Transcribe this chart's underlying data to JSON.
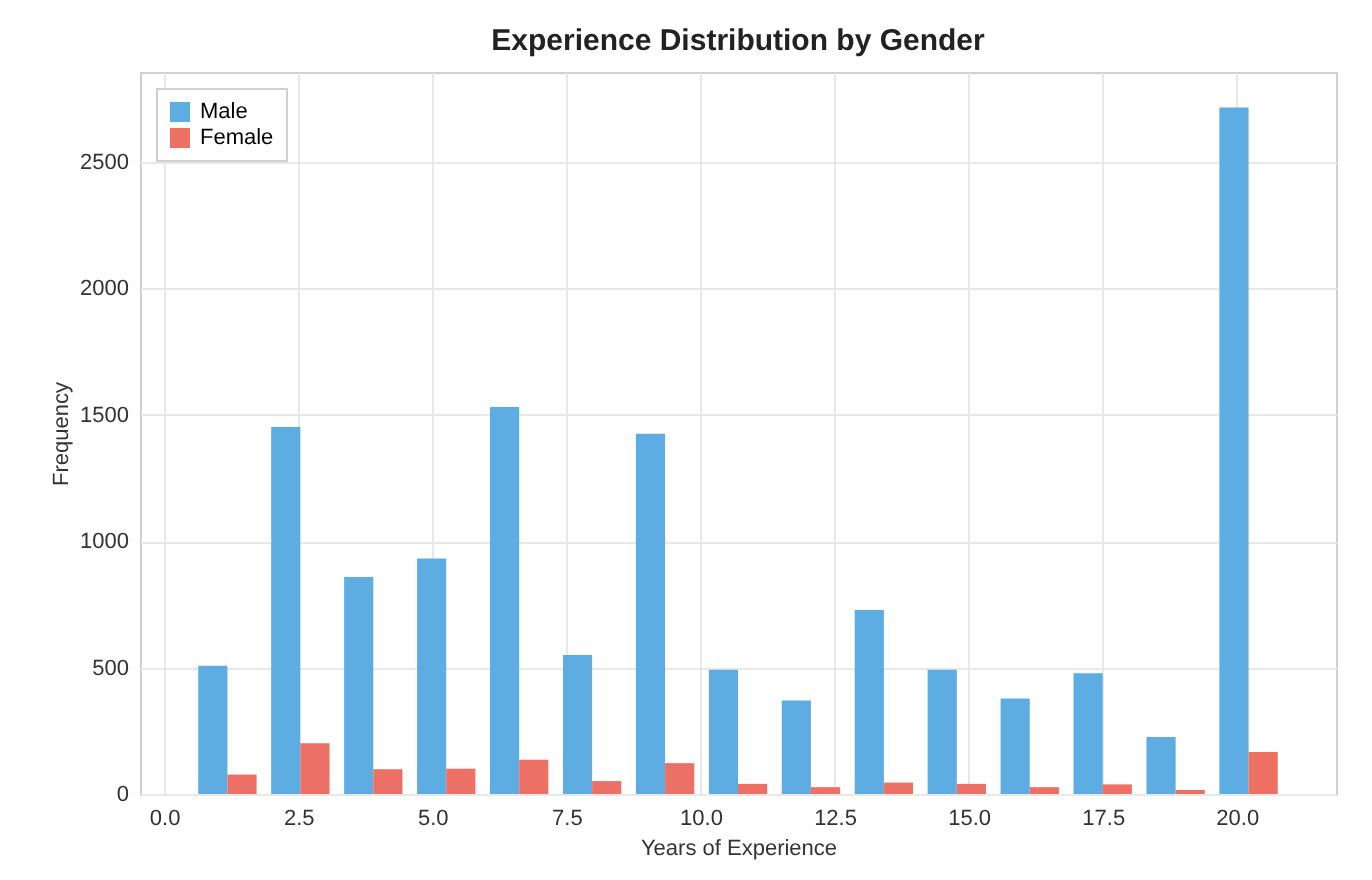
{
  "chart_data": {
    "type": "histogram",
    "title": "Experience Distribution by Gender",
    "xlabel": "Years of Experience",
    "ylabel": "Frequency",
    "bins": [
      0.5,
      1.86,
      3.22,
      4.58,
      5.94,
      7.3,
      8.66,
      10.02,
      11.38,
      12.74,
      14.1,
      15.46,
      16.82,
      18.18,
      19.54,
      20.9
    ],
    "series": [
      {
        "name": "Male",
        "color": "#5dade2",
        "values": [
          507,
          1452,
          858,
          932,
          1531,
          550,
          1425,
          491,
          370,
          728,
          491,
          378,
          478,
          225,
          2716
        ]
      },
      {
        "name": "Female",
        "color": "#ec7063",
        "values": [
          77,
          201,
          98,
          100,
          135,
          51,
          122,
          40,
          27,
          45,
          40,
          27,
          38,
          16,
          166
        ]
      }
    ],
    "xlim": [
      -0.45,
      21.85
    ],
    "ylim": [
      0,
      2856
    ],
    "xticks": [
      {
        "value": 0,
        "label": "0.0"
      },
      {
        "value": 2.5,
        "label": "2.5"
      },
      {
        "value": 5,
        "label": "5.0"
      },
      {
        "value": 7.5,
        "label": "7.5"
      },
      {
        "value": 10,
        "label": "10.0"
      },
      {
        "value": 12.5,
        "label": "12.5"
      },
      {
        "value": 15,
        "label": "15.0"
      },
      {
        "value": 17.5,
        "label": "17.5"
      },
      {
        "value": 20,
        "label": "20.0"
      }
    ],
    "yticks": [
      0,
      500,
      1000,
      1500,
      2000,
      2500
    ],
    "grid": true,
    "legend": "top left"
  }
}
